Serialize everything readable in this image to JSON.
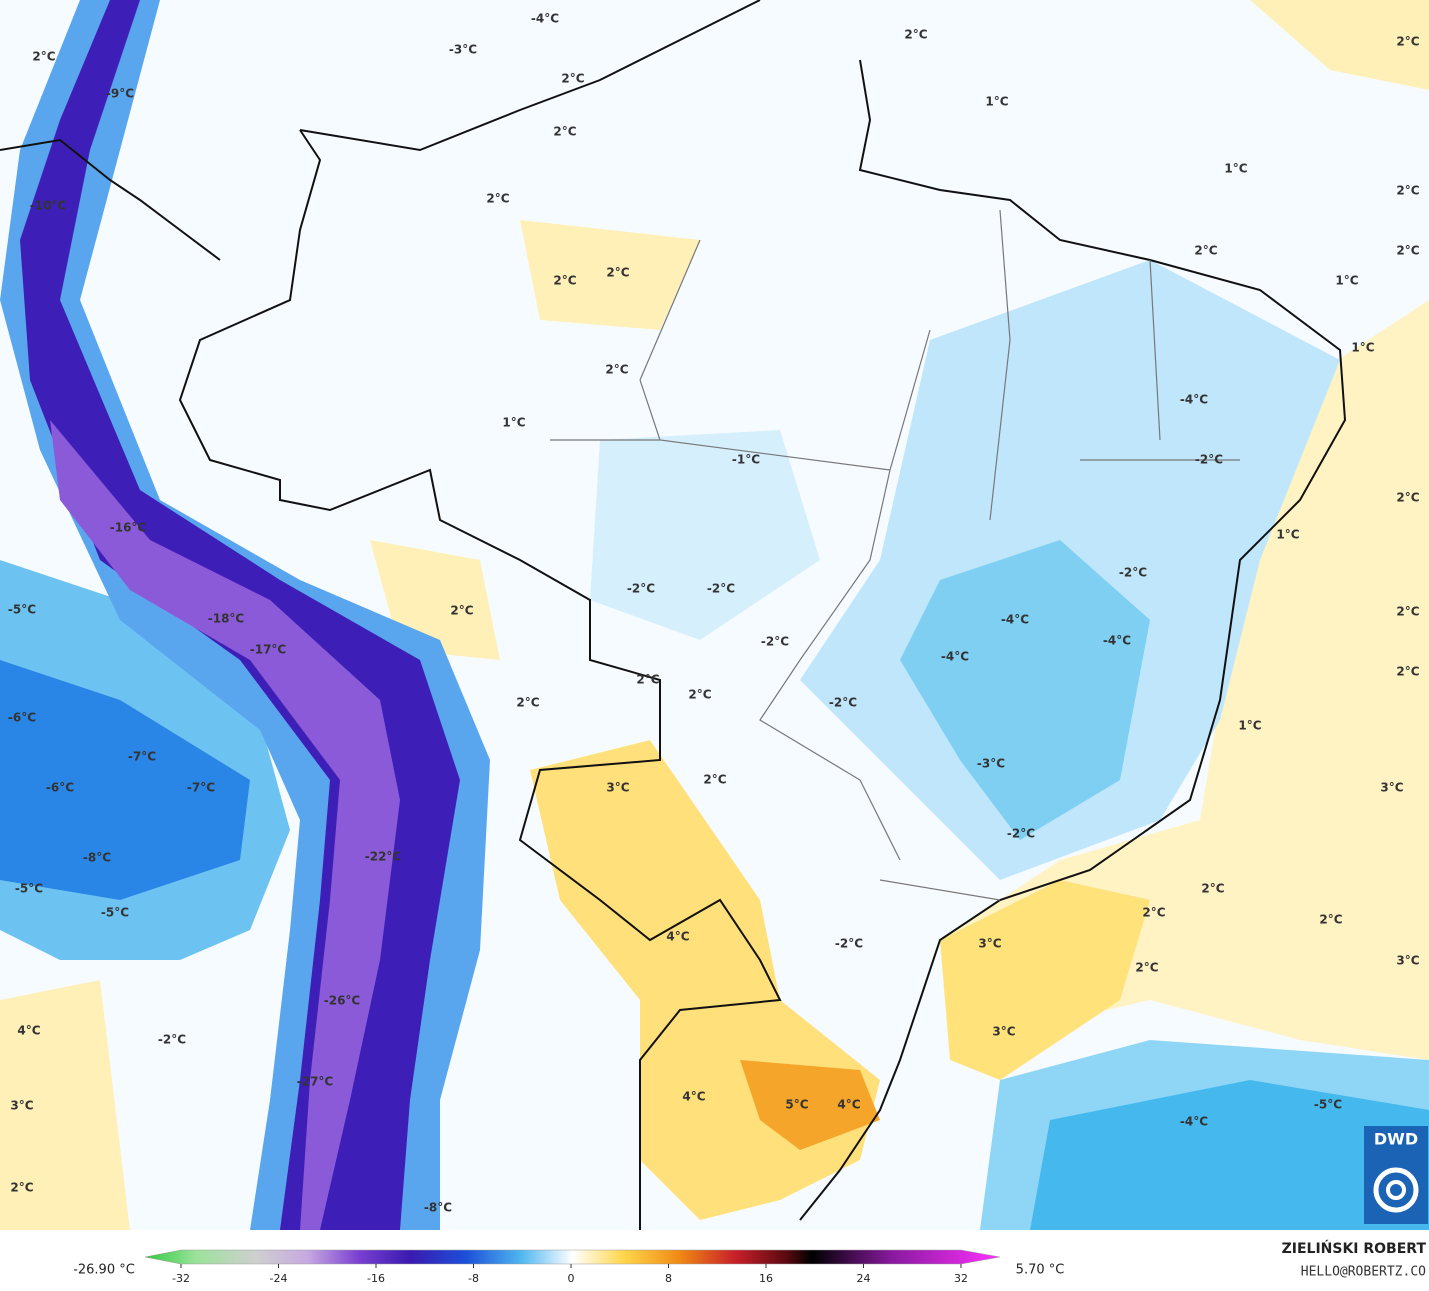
{
  "map": {
    "labels": [
      "2°C",
      "-9°C",
      "-10°C",
      "-4°C",
      "-3°C",
      "2°C",
      "2°C",
      "2°C",
      "2°C",
      "2°C",
      "2°C",
      "1°C",
      "2°C",
      "1°C",
      "2°C",
      "2°C",
      "2°C",
      "1°C",
      "1°C",
      "2°C",
      "1°C",
      "-4°C",
      "-1°C",
      "-2°C",
      "2°C",
      "1°C",
      "-16°C",
      "-2°C",
      "-2°C",
      "-2°C",
      "2°C",
      "-5°C",
      "-18°C",
      "-4°C",
      "-4°C",
      "-2°C",
      "-17°C",
      "-4°C",
      "2°C",
      "2°C",
      "2°C",
      "2°C",
      "2°C",
      "-2°C",
      "-6°C",
      "1°C",
      "-7°C",
      "-3°C",
      "2°C",
      "-6°C",
      "-7°C",
      "3°C",
      "3°C",
      "-2°C",
      "-22°C",
      "-8°C",
      "-5°C",
      "2°C",
      "-5°C",
      "2°C",
      "2°C",
      "4°C",
      "-2°C",
      "3°C",
      "3°C",
      "2°C",
      "-26°C",
      "4°C",
      "3°C",
      "-2°C",
      "-27°C",
      "4°C",
      "3°C",
      "5°C",
      "4°C",
      "-5°C",
      "-4°C",
      "2°C",
      "-8°C"
    ],
    "logo": "DWD"
  },
  "colorbar": {
    "min_label": "-26.90 °C",
    "max_label": "5.70 °C",
    "ticks": [
      -32,
      -24,
      -16,
      -8,
      0,
      8,
      16,
      24,
      32
    ]
  },
  "credit": {
    "author": "ZIELIŃSKI ROBERT",
    "email": "HELLO@ROBERTZ.CO"
  }
}
